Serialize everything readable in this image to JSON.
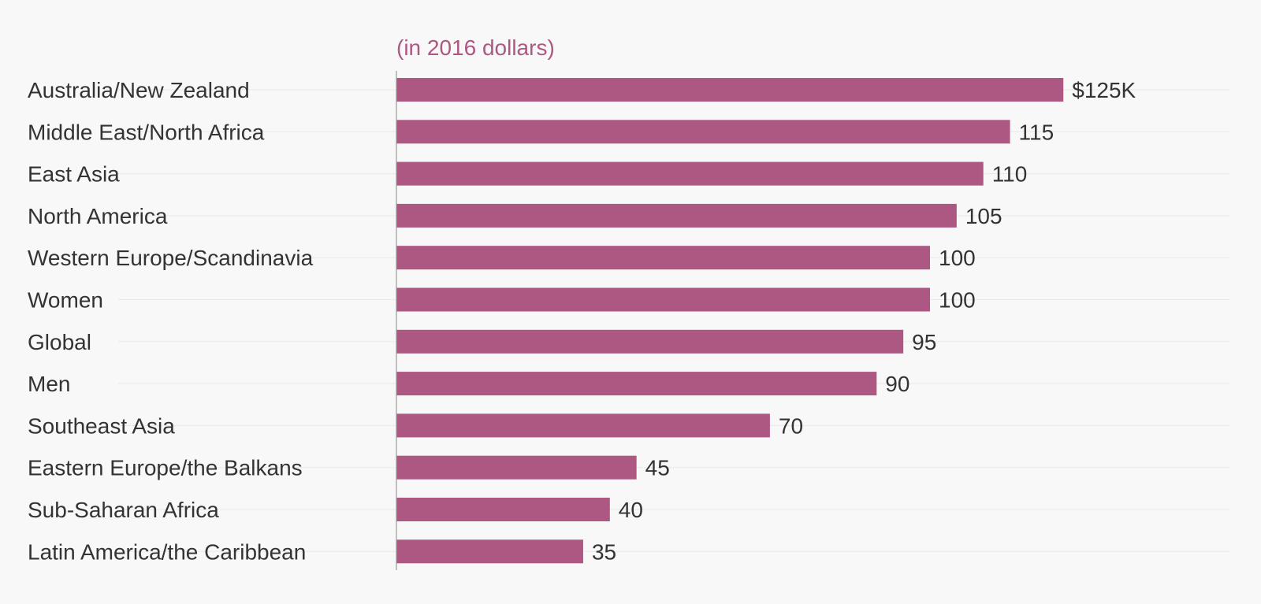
{
  "chart_data": {
    "type": "bar",
    "orientation": "horizontal",
    "subtitle": "(in 2016 dollars)",
    "categories": [
      "Australia/New Zealand",
      "Middle East/North Africa",
      "East Asia",
      "North America",
      "Western Europe/Scandinavia",
      "Women",
      "Global",
      "Men",
      "Southeast Asia",
      "Eastern Europe/the Balkans",
      "Sub-Saharan Africa",
      "Latin America/the Caribbean"
    ],
    "values": [
      125,
      115,
      110,
      105,
      100,
      100,
      95,
      90,
      70,
      45,
      40,
      35
    ],
    "value_labels": [
      "$125K",
      "115",
      "110",
      "105",
      "100",
      "100",
      "95",
      "90",
      "70",
      "45",
      "40",
      "35"
    ],
    "xlim": [
      0,
      156
    ],
    "grid": true,
    "colors": {
      "bar": "#ad5783",
      "subtitle": "#ad5783",
      "text": "#333333",
      "gridline": "#e9e9e9",
      "axis": "#9a9a9a",
      "background": "#f8f8f8"
    }
  }
}
